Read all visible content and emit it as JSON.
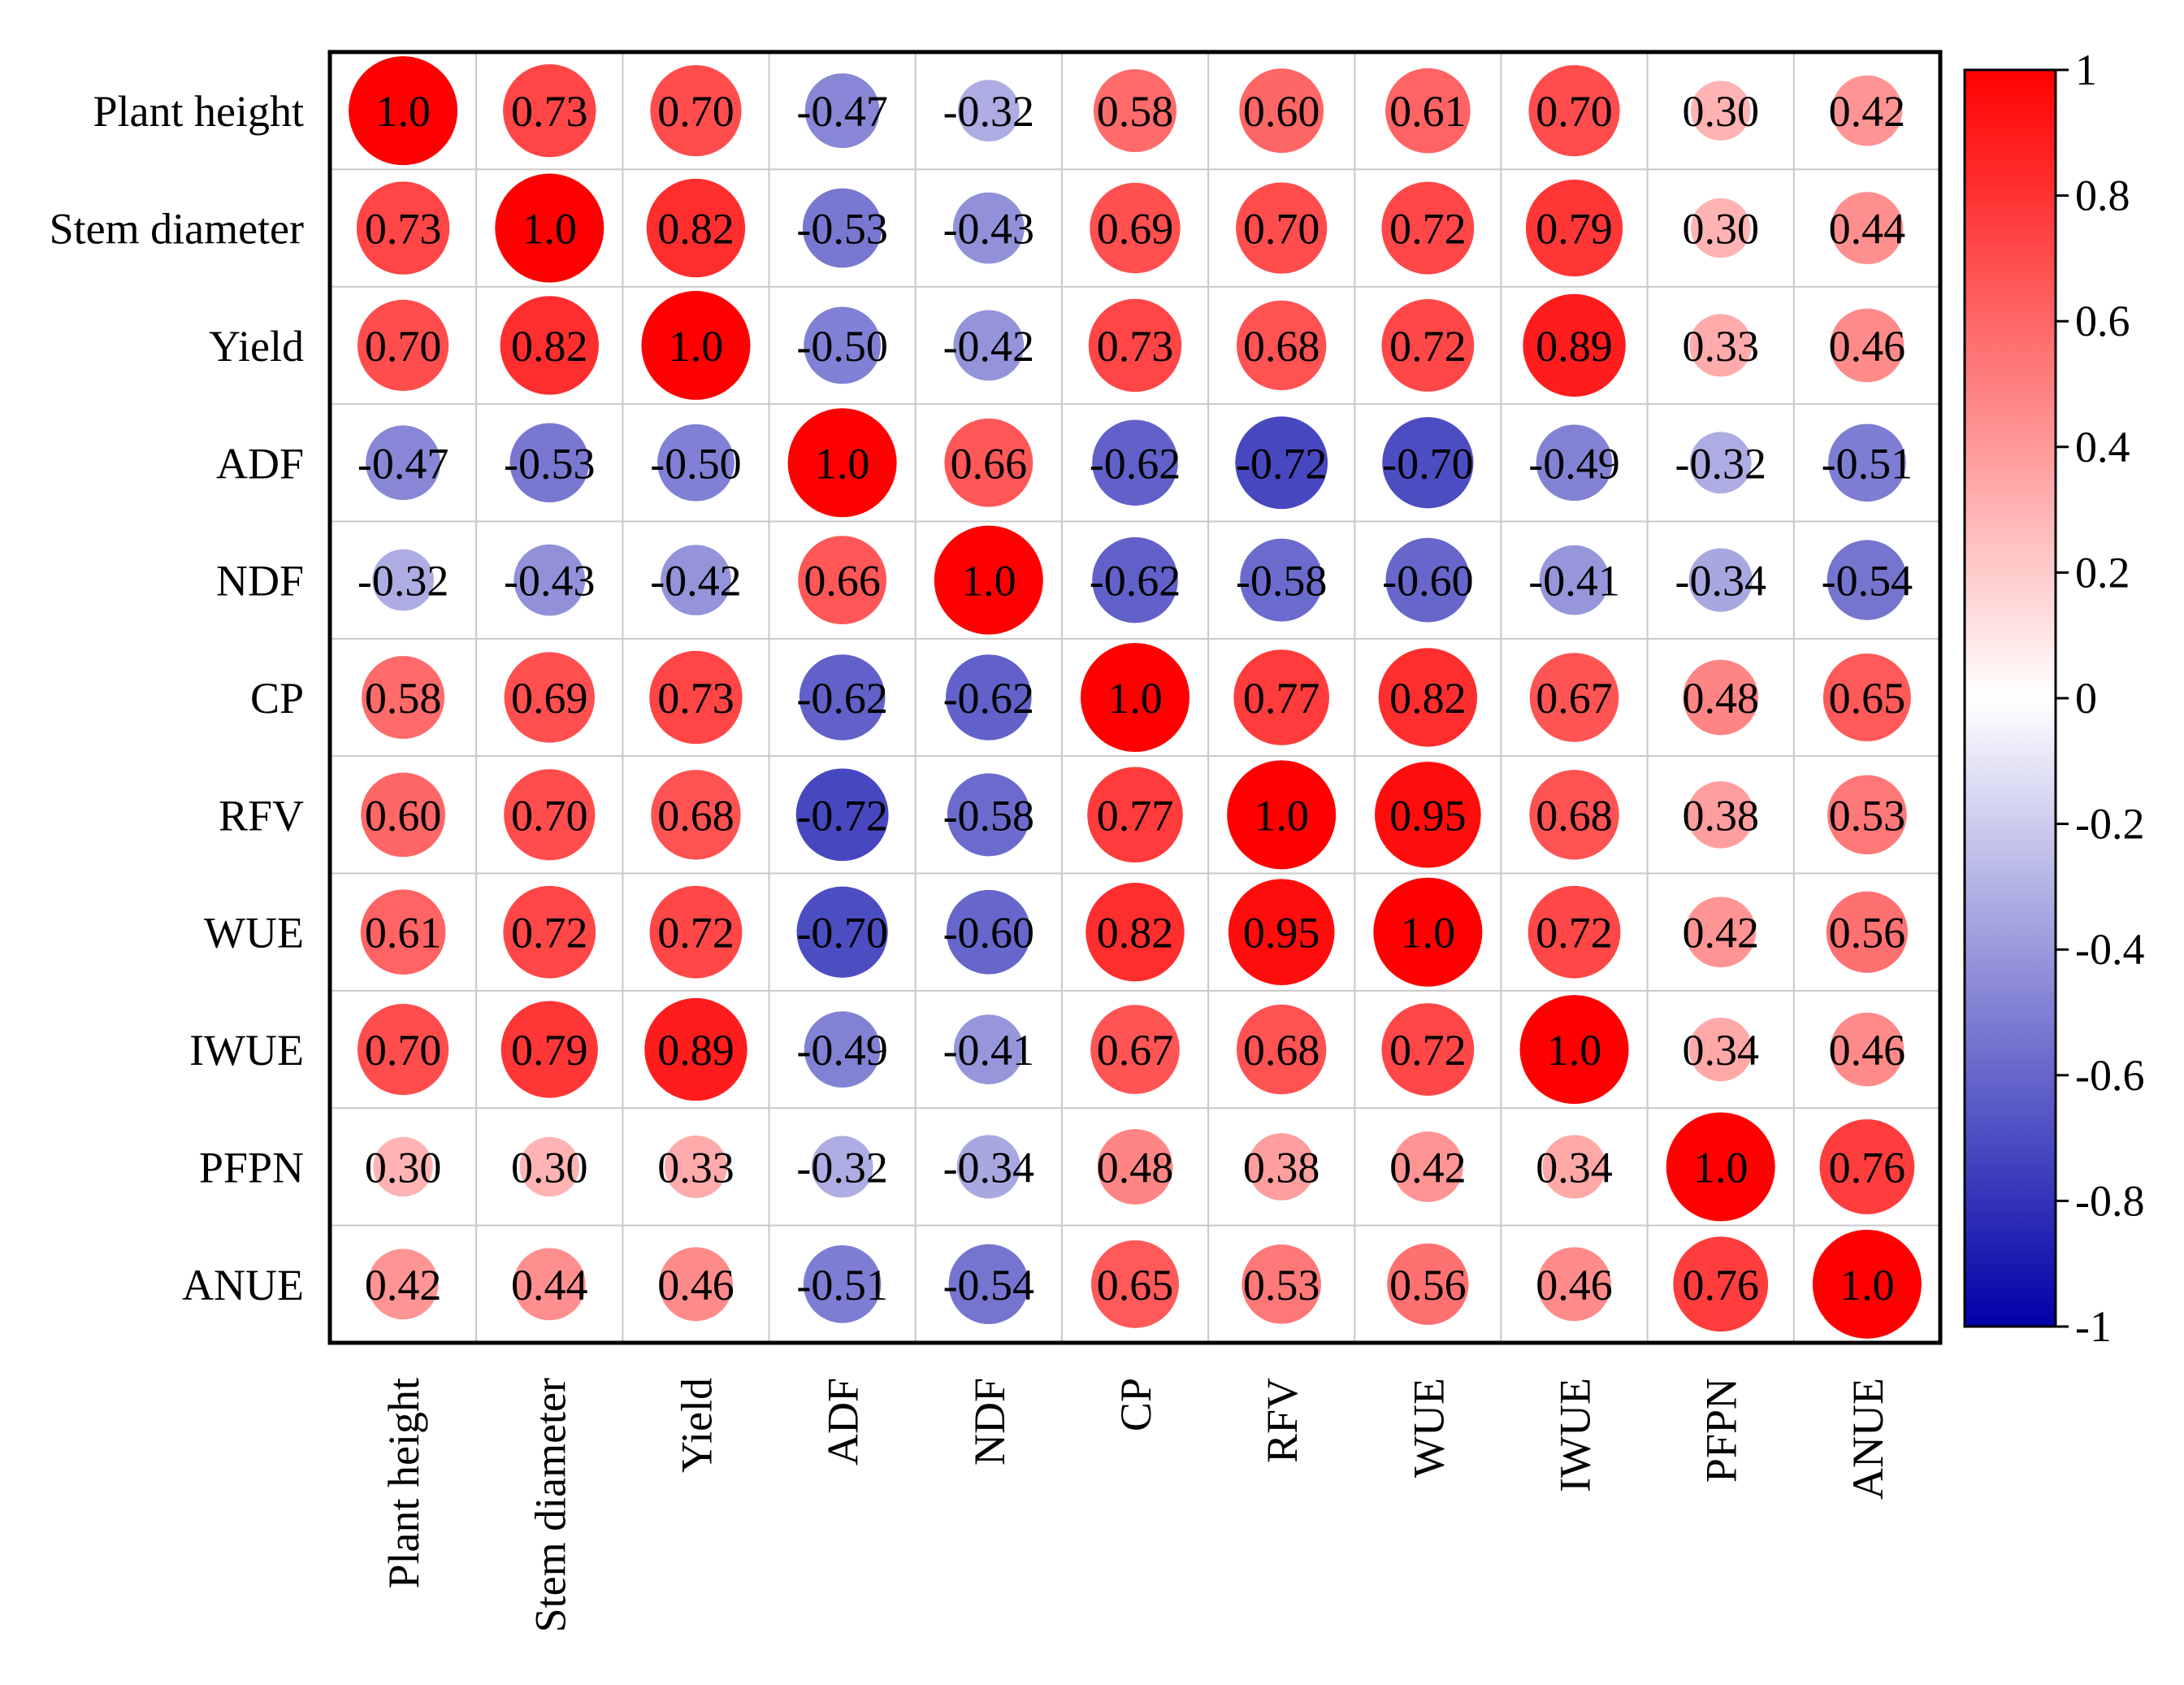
{
  "chart_data": {
    "type": "heatmap",
    "title": "",
    "variables": [
      "Plant height",
      "Stem diameter",
      "Yield",
      "ADF",
      "NDF",
      "CP",
      "RFV",
      "WUE",
      "IWUE",
      "PFPN",
      "ANUE"
    ],
    "matrix": [
      [
        1.0,
        0.73,
        0.7,
        -0.47,
        -0.32,
        0.58,
        0.6,
        0.61,
        0.7,
        0.3,
        0.42
      ],
      [
        0.73,
        1.0,
        0.82,
        -0.53,
        -0.43,
        0.69,
        0.7,
        0.72,
        0.79,
        0.3,
        0.44
      ],
      [
        0.7,
        0.82,
        1.0,
        -0.5,
        -0.42,
        0.73,
        0.68,
        0.72,
        0.89,
        0.33,
        0.46
      ],
      [
        -0.47,
        -0.53,
        -0.5,
        1.0,
        0.66,
        -0.62,
        -0.72,
        -0.7,
        -0.49,
        -0.32,
        -0.51
      ],
      [
        -0.32,
        -0.43,
        -0.42,
        0.66,
        1.0,
        -0.62,
        -0.58,
        -0.6,
        -0.41,
        -0.34,
        -0.54
      ],
      [
        0.58,
        0.69,
        0.73,
        -0.62,
        -0.62,
        1.0,
        0.77,
        0.82,
        0.67,
        0.48,
        0.65
      ],
      [
        0.6,
        0.7,
        0.68,
        -0.72,
        -0.58,
        0.77,
        1.0,
        0.95,
        0.68,
        0.38,
        0.53
      ],
      [
        0.61,
        0.72,
        0.72,
        -0.7,
        -0.6,
        0.82,
        0.95,
        1.0,
        0.72,
        0.42,
        0.56
      ],
      [
        0.7,
        0.79,
        0.89,
        -0.49,
        -0.41,
        0.67,
        0.68,
        0.72,
        1.0,
        0.34,
        0.46
      ],
      [
        0.3,
        0.3,
        0.33,
        -0.32,
        -0.34,
        0.48,
        0.38,
        0.42,
        0.34,
        1.0,
        0.76
      ],
      [
        0.42,
        0.44,
        0.46,
        -0.51,
        -0.54,
        0.65,
        0.53,
        0.56,
        0.46,
        0.76,
        1.0
      ]
    ],
    "value_labels": [
      [
        "1.0",
        "0.73",
        "0.70",
        "-0.47",
        "-0.32",
        "0.58",
        "0.60",
        "0.61",
        "0.70",
        "0.30",
        "0.42"
      ],
      [
        "0.73",
        "1.0",
        "0.82",
        "-0.53",
        "-0.43",
        "0.69",
        "0.70",
        "0.72",
        "0.79",
        "0.30",
        "0.44"
      ],
      [
        "0.70",
        "0.82",
        "1.0",
        "-0.50",
        "-0.42",
        "0.73",
        "0.68",
        "0.72",
        "0.89",
        "0.33",
        "0.46"
      ],
      [
        "-0.47",
        "-0.53",
        "-0.50",
        "1.0",
        "0.66",
        "-0.62",
        "-0.72",
        "-0.70",
        "-0.49",
        "-0.32",
        "-0.51"
      ],
      [
        "-0.32",
        "-0.43",
        "-0.42",
        "0.66",
        "1.0",
        "-0.62",
        "-0.58",
        "-0.60",
        "-0.41",
        "-0.34",
        "-0.54"
      ],
      [
        "0.58",
        "0.69",
        "0.73",
        "-0.62",
        "-0.62",
        "1.0",
        "0.77",
        "0.82",
        "0.67",
        "0.48",
        "0.65"
      ],
      [
        "0.60",
        "0.70",
        "0.68",
        "-0.72",
        "-0.58",
        "0.77",
        "1.0",
        "0.95",
        "0.68",
        "0.38",
        "0.53"
      ],
      [
        "0.61",
        "0.72",
        "0.72",
        "-0.70",
        "-0.60",
        "0.82",
        "0.95",
        "1.0",
        "0.72",
        "0.42",
        "0.56"
      ],
      [
        "0.70",
        "0.79",
        "0.89",
        "-0.49",
        "-0.41",
        "0.67",
        "0.68",
        "0.72",
        "1.0",
        "0.34",
        "0.46"
      ],
      [
        "0.30",
        "0.30",
        "0.33",
        "-0.32",
        "-0.34",
        "0.48",
        "0.38",
        "0.42",
        "0.34",
        "1.0",
        "0.76"
      ],
      [
        "0.42",
        "0.44",
        "0.46",
        "-0.51",
        "-0.54",
        "0.65",
        "0.53",
        "0.56",
        "0.46",
        "0.76",
        "1.0"
      ]
    ],
    "colorbar": {
      "range": [
        -1,
        1
      ],
      "ticks": [
        1,
        0.8,
        0.6,
        0.4,
        0.2,
        0,
        -0.2,
        -0.4,
        -0.6,
        -0.8,
        -1
      ],
      "tick_labels": [
        "1",
        "0.8",
        "0.6",
        "0.4",
        "0.2",
        "0",
        "-0.2",
        "-0.4",
        "-0.6",
        "-0.8",
        "-1"
      ],
      "colors": {
        "negative": "#0000a8",
        "zero": "#ffffff",
        "positive": "#ff0000"
      }
    },
    "grid": true,
    "marker": "circle sized and colored by correlation"
  }
}
